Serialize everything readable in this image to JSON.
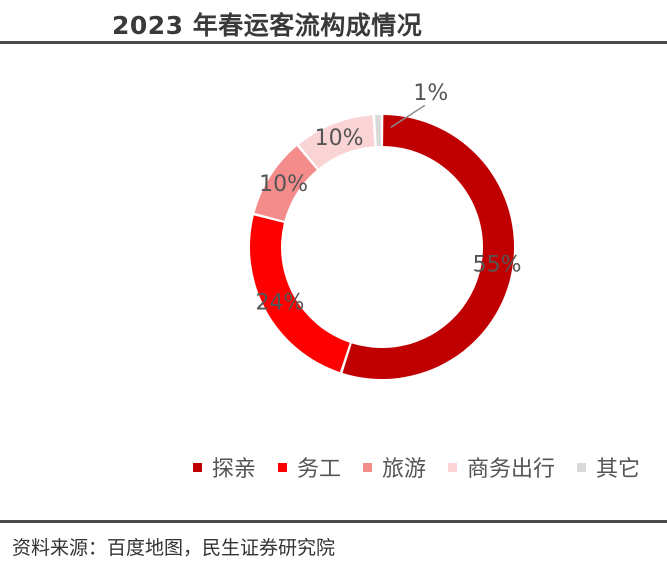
{
  "header": {
    "title": "2023 年春运客流构成情况"
  },
  "footer": {
    "source": "资料来源：百度地图，民生证券研究院"
  },
  "chart_data": {
    "type": "pie",
    "title": "2023 年春运客流构成情况",
    "donut": true,
    "legend_position": "bottom-right",
    "categories": [
      "探亲",
      "务工",
      "旅游",
      "商务出行",
      "其它"
    ],
    "values": [
      55,
      24,
      10,
      10,
      1
    ],
    "labels": [
      "55%",
      "24%",
      "10%",
      "10%",
      "1%"
    ],
    "colors": [
      "#C00000",
      "#FF0000",
      "#F48C8C",
      "#FAD4D4",
      "#D9D9D9"
    ]
  }
}
